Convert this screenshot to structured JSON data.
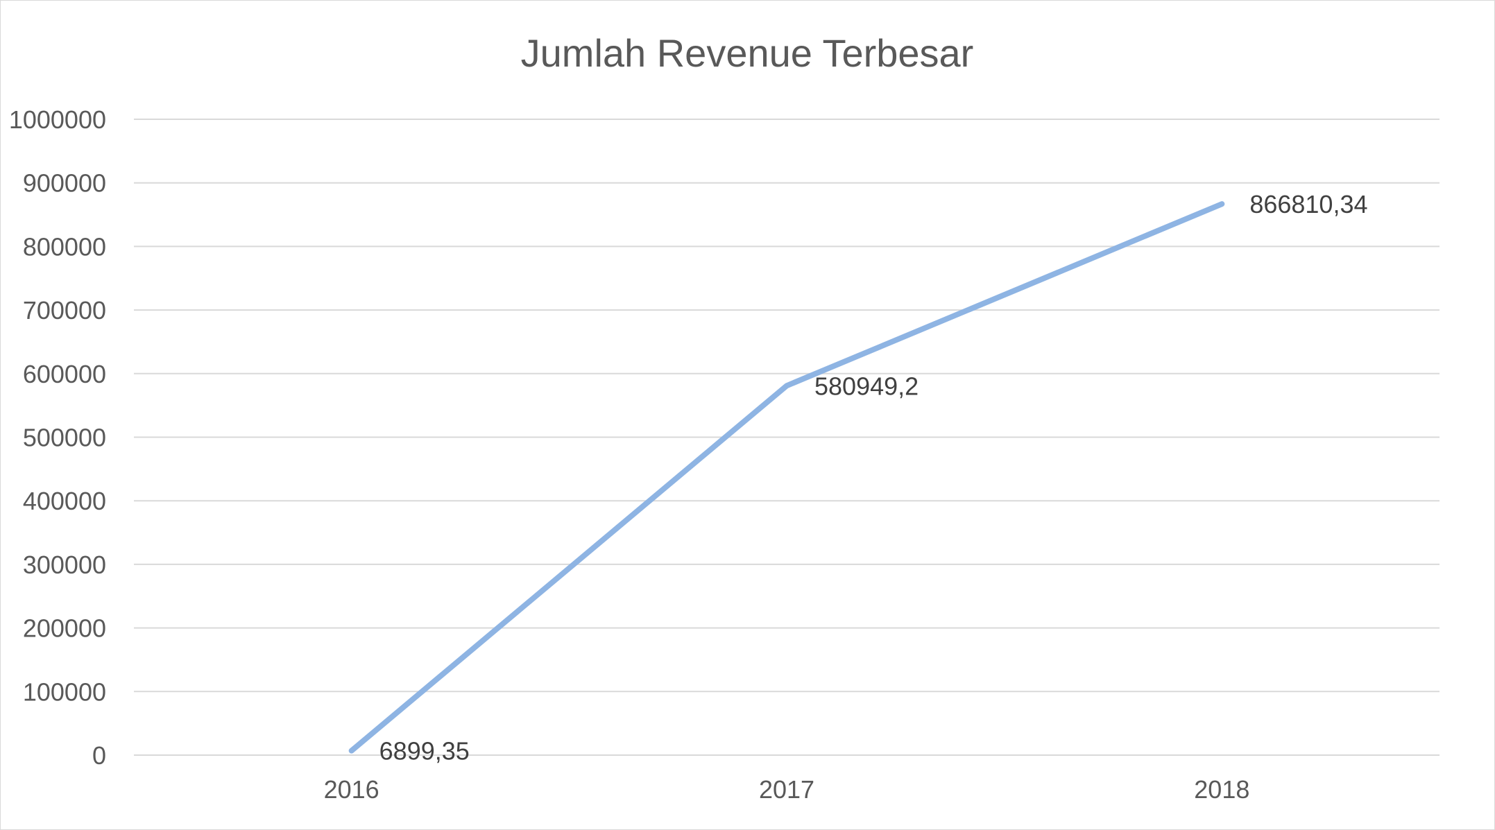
{
  "chart_data": {
    "type": "line",
    "title": "Jumlah Revenue Terbesar",
    "xlabel": "",
    "ylabel": "",
    "categories": [
      "2016",
      "2017",
      "2018"
    ],
    "series": [
      {
        "values": [
          6899.35,
          580949.2,
          866810.34
        ]
      }
    ],
    "data_labels": [
      "6899,35",
      "580949,2",
      "866810,34"
    ],
    "ylim": [
      0,
      1000000
    ],
    "yticks": [
      "0",
      "100000",
      "200000",
      "300000",
      "400000",
      "500000",
      "600000",
      "700000",
      "800000",
      "900000",
      "1000000"
    ],
    "grid": true,
    "legend": "none",
    "colors": {
      "series": "#8eb4e3",
      "grid": "#d9d9d9",
      "text": "#595959"
    }
  }
}
